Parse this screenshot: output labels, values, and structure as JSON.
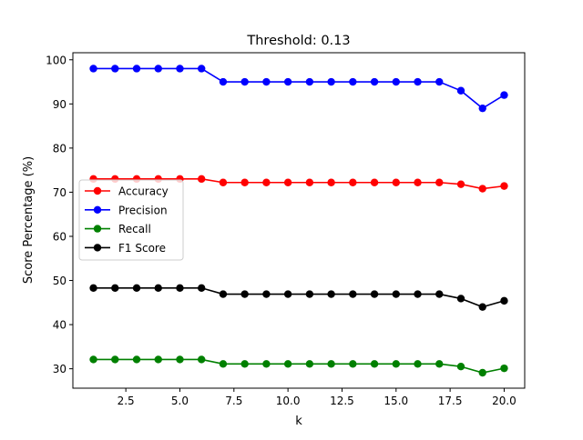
{
  "chart_data": {
    "type": "line",
    "title": "Threshold: 0.13",
    "xlabel": "k",
    "ylabel": "Score Percentage (%)",
    "xlim": [
      0.05,
      20.95
    ],
    "ylim": [
      25.6,
      101.6
    ],
    "xticks": [
      2.5,
      5.0,
      7.5,
      10.0,
      12.5,
      15.0,
      17.5,
      20.0
    ],
    "xtick_labels": [
      "2.5",
      "5.0",
      "7.5",
      "10.0",
      "12.5",
      "15.0",
      "17.5",
      "20.0"
    ],
    "yticks": [
      30,
      40,
      50,
      60,
      70,
      80,
      90,
      100
    ],
    "ytick_labels": [
      "30",
      "40",
      "50",
      "60",
      "70",
      "80",
      "90",
      "100"
    ],
    "grid": false,
    "legend": "center-left",
    "x": [
      1,
      2,
      3,
      4,
      5,
      6,
      7,
      8,
      9,
      10,
      11,
      12,
      13,
      14,
      15,
      16,
      17,
      18,
      19,
      20
    ],
    "series": [
      {
        "name": "Accuracy",
        "color": "#ff0000",
        "values": [
          73,
          73,
          73,
          73,
          73,
          73,
          72.2,
          72.2,
          72.2,
          72.2,
          72.2,
          72.2,
          72.2,
          72.2,
          72.2,
          72.2,
          72.2,
          71.8,
          70.8,
          71.4
        ]
      },
      {
        "name": "Precision",
        "color": "#0000ff",
        "values": [
          98,
          98,
          98,
          98,
          98,
          98,
          95,
          95,
          95,
          95,
          95,
          95,
          95,
          95,
          95,
          95,
          95,
          93,
          89,
          92
        ]
      },
      {
        "name": "Recall",
        "color": "#008000",
        "values": [
          32.1,
          32.1,
          32.1,
          32.1,
          32.1,
          32.1,
          31.1,
          31.1,
          31.1,
          31.1,
          31.1,
          31.1,
          31.1,
          31.1,
          31.1,
          31.1,
          31.1,
          30.5,
          29.1,
          30.1
        ]
      },
      {
        "name": "F1 Score",
        "color": "#000000",
        "values": [
          48.3,
          48.3,
          48.3,
          48.3,
          48.3,
          48.3,
          46.9,
          46.9,
          46.9,
          46.9,
          46.9,
          46.9,
          46.9,
          46.9,
          46.9,
          46.9,
          46.9,
          45.9,
          44,
          45.4
        ]
      }
    ]
  }
}
